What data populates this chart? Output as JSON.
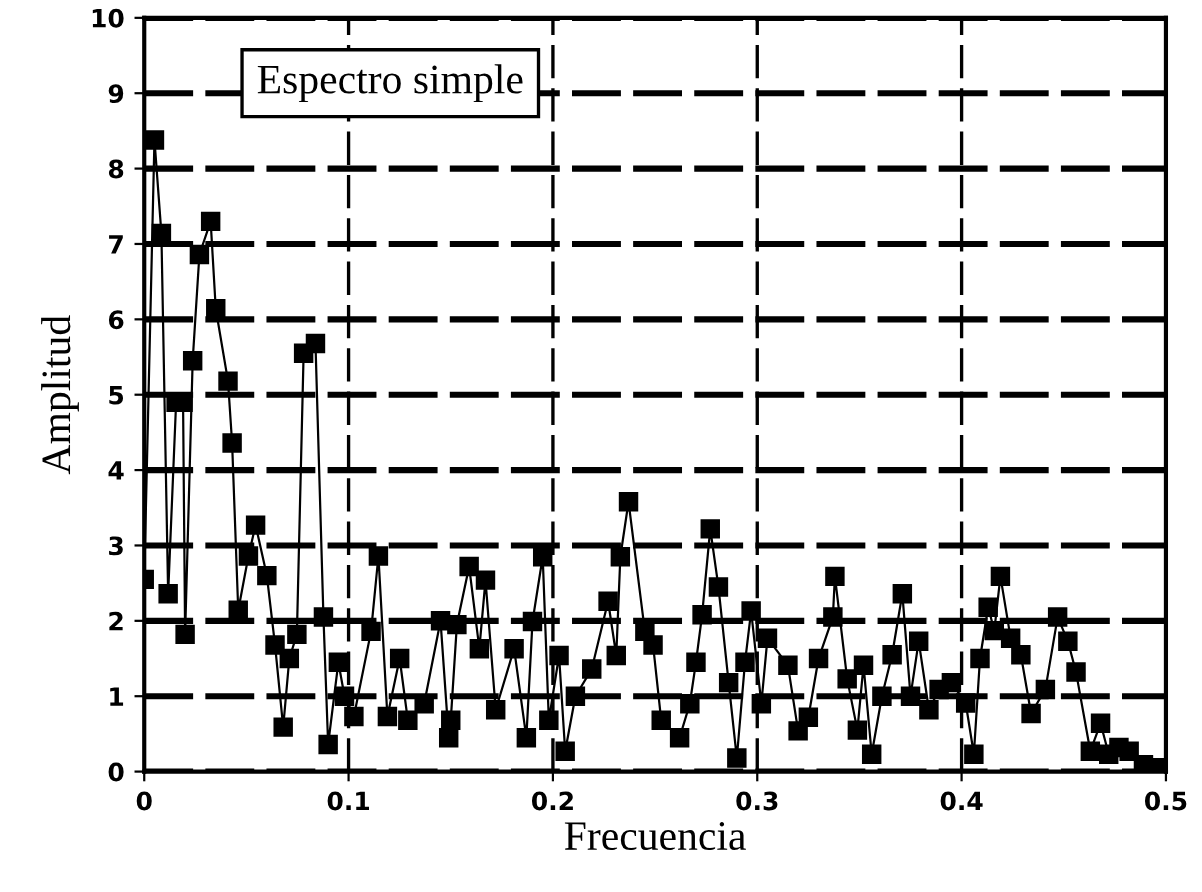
{
  "chart_data": {
    "type": "line",
    "title": "Espectro simple",
    "xlabel": "Frecuencia",
    "ylabel": "Amplitud",
    "xlim": [
      0,
      0.5
    ],
    "xticks": [
      {
        "value": 0,
        "label": "0"
      },
      0.1,
      0.2,
      0.3,
      0.4,
      0.5
    ],
    "ylim": [
      0,
      10
    ],
    "yticks": [
      0,
      1,
      2,
      3,
      4,
      5,
      6,
      7,
      8,
      9,
      10
    ],
    "grid": true,
    "marker": "square",
    "line_style": "solid",
    "series": [
      {
        "color": "#000000",
        "x": [
          0.0,
          0.005,
          0.0084,
          0.0117,
          0.0156,
          0.019,
          0.02,
          0.0237,
          0.027,
          0.0325,
          0.035,
          0.041,
          0.043,
          0.046,
          0.051,
          0.0545,
          0.06,
          0.064,
          0.068,
          0.071,
          0.0747,
          0.078,
          0.0838,
          0.0877,
          0.09,
          0.095,
          0.098,
          0.1026,
          0.111,
          0.1146,
          0.119,
          0.125,
          0.129,
          0.137,
          0.145,
          0.149,
          0.15,
          0.153,
          0.159,
          0.164,
          0.167,
          0.172,
          0.181,
          0.187,
          0.19,
          0.195,
          0.198,
          0.203,
          0.206,
          0.211,
          0.219,
          0.227,
          0.231,
          0.233,
          0.237,
          0.245,
          0.249,
          0.253,
          0.262,
          0.267,
          0.27,
          0.273,
          0.277,
          0.281,
          0.286,
          0.29,
          0.294,
          0.297,
          0.302,
          0.305,
          0.315,
          0.32,
          0.325,
          0.33,
          0.337,
          0.338,
          0.344,
          0.349,
          0.352,
          0.356,
          0.361,
          0.366,
          0.371,
          0.375,
          0.379,
          0.384,
          0.389,
          0.395,
          0.402,
          0.406,
          0.409,
          0.413,
          0.416,
          0.419,
          0.424,
          0.429,
          0.434,
          0.441,
          0.447,
          0.452,
          0.456,
          0.463,
          0.468,
          0.472,
          0.477,
          0.482,
          0.489,
          0.498
        ],
        "values": [
          2.55,
          8.38,
          7.14,
          2.36,
          4.9,
          4.9,
          1.82,
          5.45,
          6.86,
          7.3,
          6.14,
          5.18,
          4.36,
          2.14,
          2.86,
          3.27,
          2.6,
          1.68,
          0.59,
          1.5,
          1.82,
          5.55,
          5.68,
          2.05,
          0.36,
          1.45,
          1.0,
          0.73,
          1.86,
          2.86,
          0.73,
          1.5,
          0.68,
          0.9,
          2.0,
          0.45,
          0.68,
          1.95,
          2.72,
          1.63,
          2.54,
          0.82,
          1.63,
          0.45,
          1.99,
          2.85,
          0.68,
          1.54,
          0.27,
          1.0,
          1.36,
          2.26,
          1.54,
          2.85,
          3.58,
          1.86,
          1.68,
          0.68,
          0.45,
          0.9,
          1.45,
          2.08,
          3.22,
          2.45,
          1.18,
          0.18,
          1.45,
          2.13,
          0.9,
          1.77,
          1.41,
          0.54,
          0.72,
          1.5,
          2.05,
          2.59,
          1.23,
          0.55,
          1.41,
          0.23,
          1.0,
          1.55,
          2.36,
          1.0,
          1.73,
          0.82,
          1.09,
          1.18,
          0.91,
          0.23,
          1.5,
          2.18,
          1.87,
          2.59,
          1.77,
          1.55,
          0.77,
          1.09,
          2.05,
          1.73,
          1.32,
          0.27,
          0.64,
          0.23,
          0.32,
          0.27,
          0.09,
          0.05
        ]
      }
    ]
  }
}
